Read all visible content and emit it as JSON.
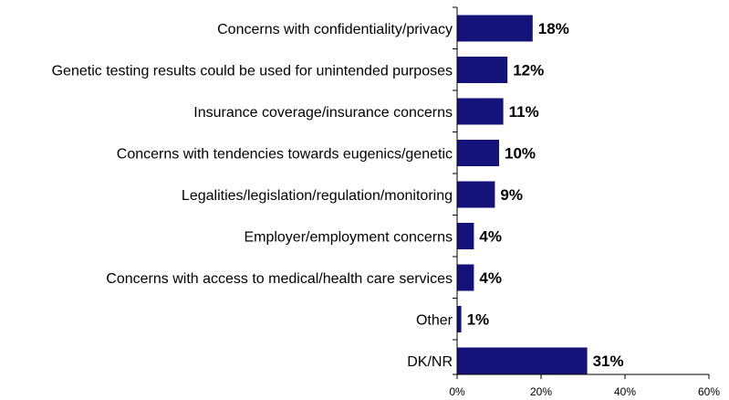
{
  "chart_data": {
    "type": "bar",
    "orientation": "horizontal",
    "categories": [
      "Concerns with confidentiality/privacy",
      "Genetic testing results could be used for unintended purposes",
      "Insurance coverage/insurance concerns",
      "Concerns with tendencies towards eugenics/genetic",
      "Legalities/legislation/regulation/monitoring",
      "Employer/employment concerns",
      "Concerns with access to medical/health care services",
      "Other",
      "DK/NR"
    ],
    "values": [
      18,
      12,
      11,
      10,
      9,
      4,
      4,
      1,
      31
    ],
    "data_labels": [
      "18%",
      "12%",
      "11%",
      "10%",
      "9%",
      "4%",
      "4%",
      "1%",
      "31%"
    ],
    "xlim": [
      0,
      60
    ],
    "x_ticks": [
      0,
      20,
      40,
      60
    ],
    "x_tick_labels": [
      "0%",
      "20%",
      "40%",
      "60%"
    ],
    "grid": false,
    "bar_color": "#14137a",
    "axis_color": "#000000"
  }
}
